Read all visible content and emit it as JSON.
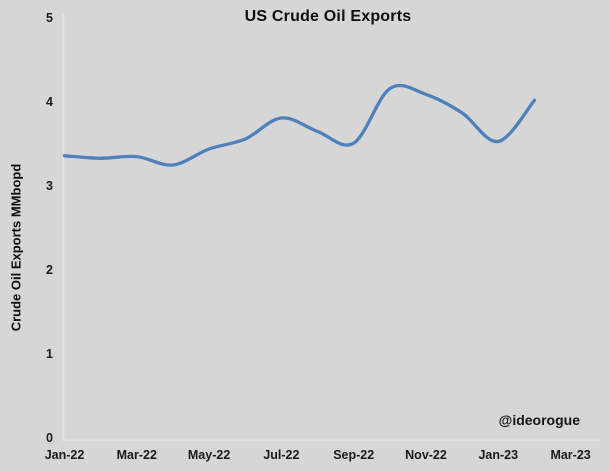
{
  "title": "US Crude Oil Exports",
  "watermark": "@ideorogue",
  "y_axis": {
    "label": "Crude Oil Exports MMbopd",
    "tick_labels": [
      "0",
      "1",
      "2",
      "3",
      "4",
      "5"
    ],
    "min": 0,
    "max": 5
  },
  "x_axis": {
    "tick_labels": [
      "Jan-22",
      "Mar-22",
      "May-22",
      "Jul-22",
      "Sep-22",
      "Nov-22",
      "Jan-23",
      "Mar-23"
    ]
  },
  "colors": {
    "background": "#D6D6D6",
    "axis_line": "#E2E2E2",
    "line": "#4E80BC",
    "text": "#1A1A1A"
  },
  "chart_data": {
    "type": "line",
    "title": "US Crude Oil Exports",
    "xlabel": "",
    "ylabel": "Crude Oil Exports MMbopd",
    "ylim": [
      0,
      5
    ],
    "y_ticks": [
      0,
      1,
      2,
      3,
      4,
      5
    ],
    "x": [
      "Jan-22",
      "Feb-22",
      "Mar-22",
      "Apr-22",
      "May-22",
      "Jun-22",
      "Jul-22",
      "Aug-22",
      "Sep-22",
      "Oct-22",
      "Nov-22",
      "Dec-22",
      "Jan-23",
      "Feb-23"
    ],
    "x_axis_extends_to": "Mar-23",
    "series": [
      {
        "name": "US Crude Oil Exports (MMbopd)",
        "values": [
          3.36,
          3.33,
          3.35,
          3.25,
          3.44,
          3.56,
          3.81,
          3.65,
          3.51,
          4.16,
          4.09,
          3.87,
          3.53,
          4.02
        ]
      }
    ],
    "smooth": true,
    "grid": false,
    "legend": "none",
    "annotations": [
      "@ideorogue"
    ]
  }
}
